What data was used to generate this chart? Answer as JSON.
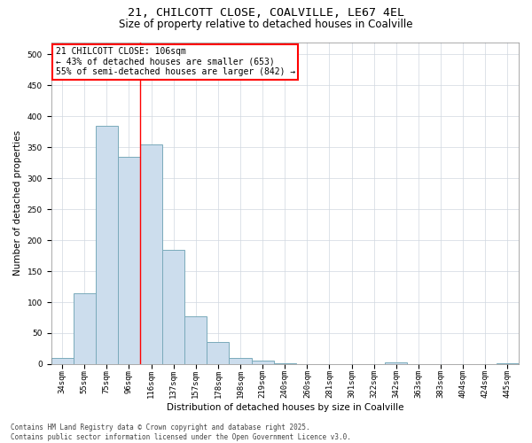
{
  "title_line1": "21, CHILCOTT CLOSE, COALVILLE, LE67 4EL",
  "title_line2": "Size of property relative to detached houses in Coalville",
  "xlabel": "Distribution of detached houses by size in Coalville",
  "ylabel": "Number of detached properties",
  "categories": [
    "34sqm",
    "55sqm",
    "75sqm",
    "96sqm",
    "116sqm",
    "137sqm",
    "157sqm",
    "178sqm",
    "198sqm",
    "219sqm",
    "240sqm",
    "260sqm",
    "281sqm",
    "301sqm",
    "322sqm",
    "342sqm",
    "363sqm",
    "383sqm",
    "404sqm",
    "424sqm",
    "445sqm"
  ],
  "values": [
    10,
    115,
    385,
    335,
    355,
    185,
    77,
    35,
    10,
    6,
    2,
    0,
    0,
    0,
    0,
    3,
    0,
    0,
    0,
    0,
    2
  ],
  "bar_color": "#ccdded",
  "bar_edge_color": "#7aaabb",
  "annotation_text": "21 CHILCOTT CLOSE: 106sqm\n← 43% of detached houses are smaller (653)\n55% of semi-detached houses are larger (842) →",
  "annotation_box_color": "white",
  "annotation_box_edge_color": "red",
  "vline_x": 3.5,
  "vline_color": "red",
  "ylim": [
    0,
    520
  ],
  "yticks": [
    0,
    50,
    100,
    150,
    200,
    250,
    300,
    350,
    400,
    450,
    500
  ],
  "grid_color": "#d0d8e0",
  "background_color": "white",
  "footer_line1": "Contains HM Land Registry data © Crown copyright and database right 2025.",
  "footer_line2": "Contains public sector information licensed under the Open Government Licence v3.0.",
  "title_fontsize": 9.5,
  "subtitle_fontsize": 8.5,
  "axis_label_fontsize": 7.5,
  "tick_fontsize": 6.5,
  "annotation_fontsize": 7,
  "footer_fontsize": 5.5
}
